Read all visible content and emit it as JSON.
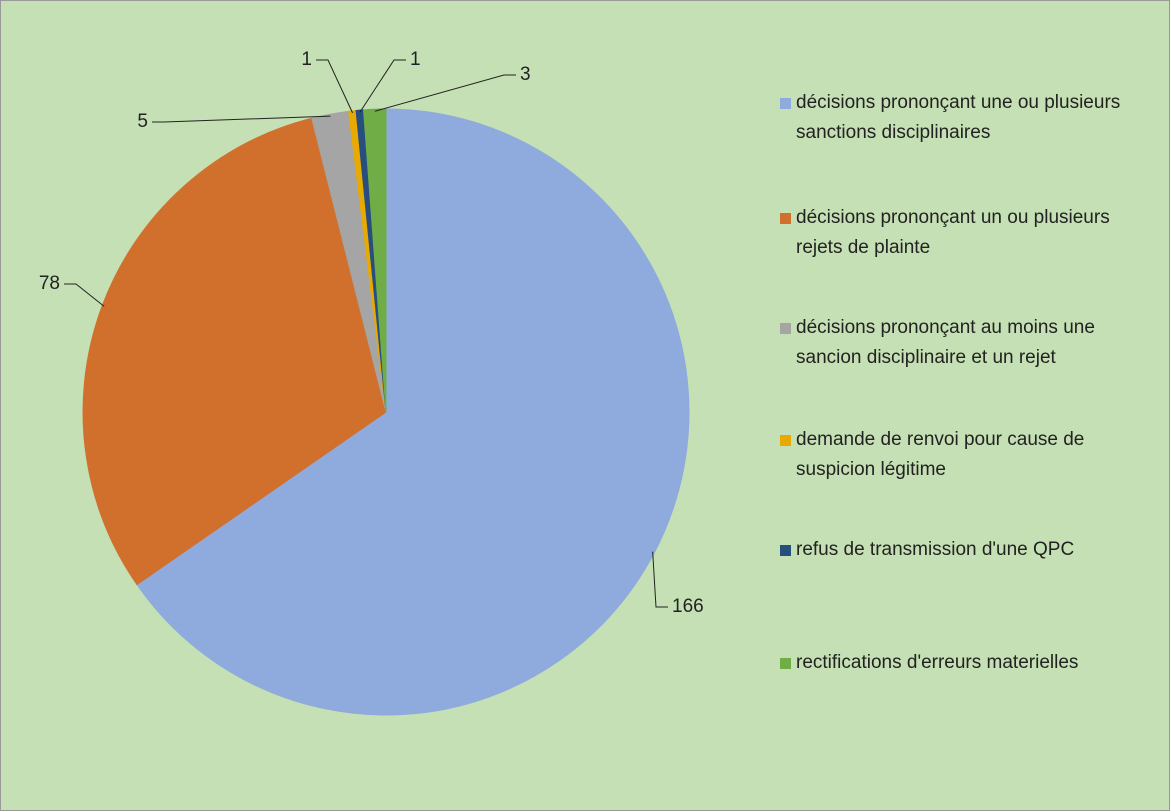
{
  "chart_data": {
    "type": "pie",
    "categories": [
      "décisions prononçant une ou plusieurs sanctions disciplinaires",
      "décisions prononçant un ou plusieurs rejets de plainte",
      "décisions prononçant au moins une sancion disciplinaire et un rejet",
      "demande de renvoi pour cause de suspicion légitime",
      "refus de transmission d'une QPC",
      "rectifications d'erreurs materielles"
    ],
    "values": [
      166,
      78,
      5,
      1,
      1,
      3
    ],
    "colors": [
      "#8faadc",
      "#d0702c",
      "#a5a5a5",
      "#e8a900",
      "#264f7f",
      "#70ad47"
    ],
    "legend": "right"
  }
}
